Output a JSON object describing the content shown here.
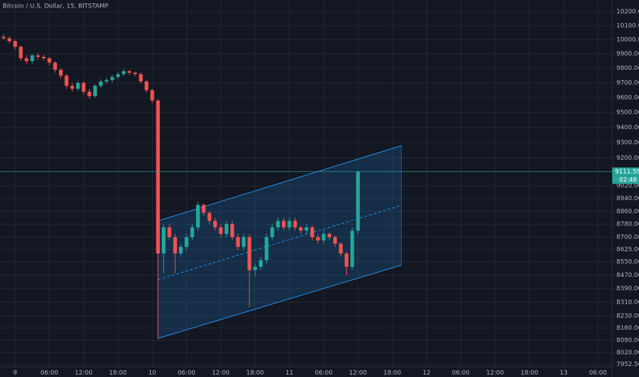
{
  "chart_data": {
    "type": "candlestick",
    "title": "Bitcoin / U.S. Dollar, 15, BITSTAMP",
    "log_scale": true,
    "grid": true,
    "up_color": "#26a69a",
    "down_color": "#ef5350",
    "x": [
      -2,
      -1,
      0,
      1,
      2,
      3,
      4,
      5,
      6,
      7,
      8,
      9,
      10,
      11,
      12,
      13,
      14,
      15,
      16,
      17,
      18,
      19,
      20,
      21,
      22,
      23,
      24,
      25,
      26,
      27,
      28,
      29,
      30,
      31,
      32,
      33,
      34,
      35,
      36,
      37,
      38,
      39,
      40,
      41,
      42,
      43,
      44,
      45,
      46,
      47,
      48,
      49,
      50,
      51,
      52,
      53,
      54,
      55,
      56,
      57,
      58,
      59,
      60
    ],
    "open": [
      10020,
      10010,
      9990,
      9950,
      9870,
      9850,
      9890,
      9880,
      9870,
      9840,
      9790,
      9750,
      9680,
      9660,
      9700,
      9640,
      9610,
      9680,
      9710,
      9720,
      9740,
      9760,
      9780,
      9770,
      9760,
      9710,
      9650,
      9580,
      8600,
      8760,
      8700,
      8600,
      8640,
      8700,
      8760,
      8900,
      8850,
      8800,
      8760,
      8720,
      8780,
      8700,
      8640,
      8700,
      8500,
      8520,
      8560,
      8700,
      8760,
      8800,
      8760,
      8800,
      8760,
      8740,
      8760,
      8700,
      8680,
      8720,
      8700,
      8660,
      8600,
      8520,
      8740
    ],
    "high": [
      10040,
      10025,
      10000,
      9960,
      9890,
      9900,
      9905,
      9895,
      9880,
      9850,
      9800,
      9760,
      9700,
      9715,
      9710,
      9660,
      9690,
      9725,
      9735,
      9755,
      9775,
      9795,
      9790,
      9780,
      9770,
      9720,
      9660,
      9590,
      8780,
      8780,
      8720,
      8660,
      8720,
      8780,
      8920,
      8910,
      8860,
      8820,
      8780,
      8800,
      8800,
      8720,
      8720,
      8720,
      8540,
      8580,
      8720,
      8780,
      8820,
      8820,
      8820,
      8820,
      8770,
      8780,
      8770,
      8720,
      8740,
      8730,
      8710,
      8670,
      8610,
      8760,
      9120
    ],
    "low": [
      10000,
      9975,
      9930,
      9850,
      9830,
      9830,
      9860,
      9855,
      9820,
      9770,
      9730,
      9660,
      9640,
      9645,
      9620,
      9590,
      9600,
      9665,
      9695,
      9705,
      9725,
      9745,
      9755,
      9745,
      9695,
      9635,
      9560,
      8100,
      8480,
      8680,
      8480,
      8580,
      8620,
      8680,
      8740,
      8830,
      8780,
      8740,
      8700,
      8700,
      8680,
      8620,
      8620,
      8280,
      8460,
      8500,
      8540,
      8680,
      8740,
      8740,
      8740,
      8740,
      8720,
      8720,
      8680,
      8660,
      8660,
      8680,
      8640,
      8580,
      8470,
      8500,
      8720
    ],
    "close": [
      10010,
      9990,
      9950,
      9870,
      9850,
      9890,
      9880,
      9870,
      9840,
      9790,
      9750,
      9680,
      9660,
      9700,
      9640,
      9610,
      9680,
      9710,
      9720,
      9740,
      9760,
      9780,
      9770,
      9760,
      9710,
      9650,
      9580,
      8600,
      8760,
      8700,
      8600,
      8640,
      8700,
      8760,
      8900,
      8850,
      8800,
      8760,
      8720,
      8780,
      8700,
      8640,
      8700,
      8500,
      8520,
      8560,
      8700,
      8760,
      8800,
      8760,
      8800,
      8760,
      8740,
      8760,
      8700,
      8680,
      8720,
      8700,
      8660,
      8600,
      8520,
      8740,
      9111.59
    ],
    "countdown": "02:48",
    "channel": {
      "x": [
        25,
        67.6
      ],
      "upper": [
        8800,
        9280
      ],
      "lower": [
        8100,
        8530
      ],
      "color": "#2196f3"
    },
    "xlim": [
      -2.64,
      104.5
    ],
    "xticks": [
      {
        "value": 0,
        "label": "9"
      },
      {
        "value": 6,
        "label": "06:00"
      },
      {
        "value": 12,
        "label": "12:00"
      },
      {
        "value": 18,
        "label": "18:00"
      },
      {
        "value": 24,
        "label": "10"
      },
      {
        "value": 30,
        "label": "06:00"
      },
      {
        "value": 36,
        "label": "12:00"
      },
      {
        "value": 42,
        "label": "18:00"
      },
      {
        "value": 48,
        "label": "11"
      },
      {
        "value": 54,
        "label": "06:00"
      },
      {
        "value": 60,
        "label": "12:00"
      },
      {
        "value": 66,
        "label": "18:00"
      },
      {
        "value": 72,
        "label": "12"
      },
      {
        "value": 78,
        "label": "06:00"
      },
      {
        "value": 84,
        "label": "12:00"
      },
      {
        "value": 90,
        "label": "18:00"
      },
      {
        "value": 96,
        "label": "13"
      },
      {
        "value": 102,
        "label": "06:00"
      }
    ],
    "ylim": [
      7940,
      10284
    ],
    "yticks": [
      {
        "value": 10200,
        "label": "10200.00"
      },
      {
        "value": 10100,
        "label": "10100.00"
      },
      {
        "value": 10000,
        "label": "10000.00"
      },
      {
        "value": 9900,
        "label": "9900.00"
      },
      {
        "value": 9800,
        "label": "9800.00"
      },
      {
        "value": 9700,
        "label": "9700.00"
      },
      {
        "value": 9600,
        "label": "9600.00"
      },
      {
        "value": 9500,
        "label": "9500.00"
      },
      {
        "value": 9400,
        "label": "9400.00"
      },
      {
        "value": 9300,
        "label": "9300.00"
      },
      {
        "value": 9200,
        "label": "9200.00"
      },
      {
        "value": 9020,
        "label": "9020.00"
      },
      {
        "value": 8940,
        "label": "8940.00"
      },
      {
        "value": 8860,
        "label": "8860.00"
      },
      {
        "value": 8780,
        "label": "8780.00"
      },
      {
        "value": 8700,
        "label": "8700.00"
      },
      {
        "value": 8625,
        "label": "8625.00"
      },
      {
        "value": 8550,
        "label": "8550.00"
      },
      {
        "value": 8470,
        "label": "8470.00"
      },
      {
        "value": 8390,
        "label": "8390.00"
      },
      {
        "value": 8310,
        "label": "8310.00"
      },
      {
        "value": 8230,
        "label": "8230.00"
      },
      {
        "value": 8160,
        "label": "8160.00"
      },
      {
        "value": 8090,
        "label": "8090.00"
      },
      {
        "value": 8020,
        "label": "8020.00"
      },
      {
        "value": 7952.5,
        "label": "7952.50"
      }
    ]
  }
}
